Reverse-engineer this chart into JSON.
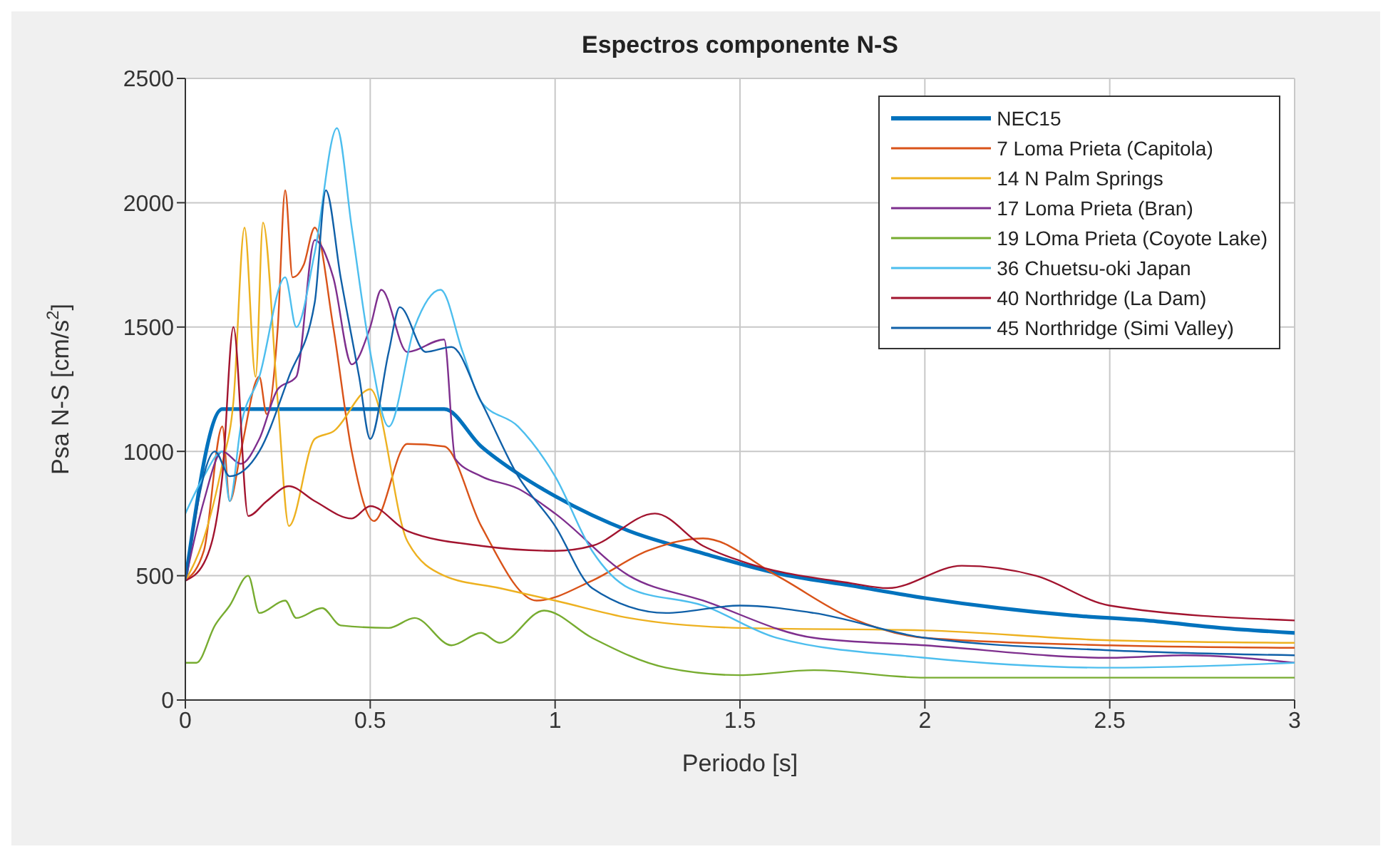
{
  "chart_data": {
    "type": "line",
    "title": "Espectros componente N-S",
    "xlabel": "Periodo [s]",
    "ylabel": "Psa N-S [cm/s$^{2}$]",
    "xlim": [
      0,
      3
    ],
    "xticks": [
      0,
      0.5,
      1,
      1.5,
      2,
      2.5,
      3
    ],
    "ylim": [
      0,
      2500
    ],
    "yticks": [
      0,
      500,
      1000,
      1500,
      2000,
      2500
    ],
    "grid": true,
    "legend": "top right",
    "marker": "none",
    "line_style": "solid",
    "series": [
      {
        "name": "NEC15",
        "color": "#0072bd",
        "x": [
          0,
          0.1,
          0.2,
          0.3,
          0.4,
          0.5,
          0.6,
          0.7,
          0.8,
          0.9,
          1,
          1.2,
          1.4,
          1.6,
          1.8,
          2,
          2.2,
          2.4,
          2.6,
          2.8,
          3
        ],
        "values": [
          480,
          1170,
          1170,
          1170,
          1170,
          1170,
          1170,
          1170,
          1020,
          910,
          820,
          680,
          590,
          510,
          460,
          410,
          370,
          340,
          320,
          290,
          270
        ]
      },
      {
        "name": "7 Loma Prieta (Capitola)",
        "color": "#d95319",
        "x": [
          0,
          0.05,
          0.1,
          0.12,
          0.15,
          0.2,
          0.22,
          0.25,
          0.27,
          0.29,
          0.32,
          0.35,
          0.4,
          0.45,
          0.51,
          0.6,
          0.7,
          0.8,
          0.95,
          1.1,
          1.25,
          1.4,
          1.6,
          1.8,
          2,
          2.5,
          3
        ],
        "values": [
          480,
          600,
          1100,
          800,
          1000,
          1300,
          1150,
          1500,
          2050,
          1700,
          1750,
          1900,
          1500,
          1000,
          720,
          1030,
          1020,
          700,
          400,
          480,
          600,
          650,
          500,
          330,
          250,
          220,
          210
        ]
      },
      {
        "name": "14 N Palm Springs",
        "color": "#edb120",
        "x": [
          0,
          0.05,
          0.1,
          0.13,
          0.16,
          0.19,
          0.21,
          0.25,
          0.28,
          0.35,
          0.4,
          0.5,
          0.6,
          0.7,
          0.85,
          1,
          1.2,
          1.5,
          2,
          2.5,
          3
        ],
        "values": [
          480,
          650,
          950,
          1200,
          1900,
          1300,
          1920,
          1200,
          700,
          1050,
          1080,
          1250,
          640,
          500,
          450,
          400,
          330,
          290,
          280,
          240,
          230
        ]
      },
      {
        "name": "17 Loma Prieta (Bran)",
        "color": "#7e2f8e",
        "x": [
          0,
          0.05,
          0.1,
          0.15,
          0.2,
          0.25,
          0.3,
          0.35,
          0.4,
          0.45,
          0.5,
          0.53,
          0.6,
          0.7,
          0.73,
          0.8,
          0.9,
          1,
          1.2,
          1.4,
          1.7,
          2,
          2.5,
          2.7,
          3
        ],
        "values": [
          480,
          800,
          1000,
          950,
          1050,
          1250,
          1300,
          1850,
          1700,
          1350,
          1500,
          1650,
          1400,
          1450,
          970,
          900,
          850,
          750,
          500,
          400,
          250,
          220,
          170,
          180,
          150
        ]
      },
      {
        "name": "19 LOma Prieta (Coyote Lake)",
        "color": "#77ac30",
        "x": [
          0,
          0.03,
          0.08,
          0.12,
          0.17,
          0.2,
          0.27,
          0.3,
          0.37,
          0.42,
          0.55,
          0.62,
          0.72,
          0.8,
          0.85,
          0.97,
          1.1,
          1.3,
          1.5,
          1.7,
          2,
          2.5,
          3
        ],
        "values": [
          150,
          150,
          300,
          380,
          500,
          350,
          400,
          330,
          370,
          300,
          290,
          330,
          220,
          270,
          230,
          360,
          250,
          130,
          100,
          120,
          90,
          90,
          90
        ]
      },
      {
        "name": "36 Chuetsu-oki Japan",
        "color": "#4dbeee",
        "x": [
          0,
          0.05,
          0.1,
          0.12,
          0.15,
          0.2,
          0.27,
          0.3,
          0.35,
          0.41,
          0.45,
          0.5,
          0.55,
          0.62,
          0.69,
          0.75,
          0.8,
          0.9,
          1,
          1.1,
          1.2,
          1.4,
          1.6,
          2,
          2.5,
          3
        ],
        "values": [
          750,
          900,
          1000,
          800,
          1100,
          1300,
          1700,
          1500,
          1800,
          2300,
          1900,
          1400,
          1100,
          1500,
          1650,
          1400,
          1200,
          1100,
          900,
          600,
          450,
          380,
          250,
          170,
          130,
          150
        ]
      },
      {
        "name": "40 Northridge (La Dam)",
        "color": "#a2142f",
        "x": [
          0,
          0.05,
          0.1,
          0.13,
          0.17,
          0.22,
          0.28,
          0.35,
          0.45,
          0.5,
          0.6,
          0.8,
          1,
          1.1,
          1.27,
          1.4,
          1.5,
          1.8,
          1.9,
          2.1,
          2.3,
          2.5,
          3
        ],
        "values": [
          480,
          550,
          900,
          1500,
          740,
          800,
          860,
          800,
          730,
          780,
          680,
          620,
          600,
          620,
          750,
          620,
          560,
          470,
          450,
          540,
          500,
          380,
          320
        ]
      },
      {
        "name": "45 Northridge (Simi Valley)",
        "color": "#1060a8",
        "x": [
          0,
          0.08,
          0.12,
          0.2,
          0.28,
          0.35,
          0.38,
          0.42,
          0.47,
          0.5,
          0.55,
          0.58,
          0.65,
          0.72,
          0.8,
          0.9,
          1,
          1.1,
          1.3,
          1.5,
          1.7,
          2,
          2.5,
          3
        ],
        "values": [
          480,
          1000,
          900,
          1000,
          1300,
          1600,
          2050,
          1700,
          1300,
          1050,
          1400,
          1580,
          1400,
          1420,
          1200,
          900,
          700,
          450,
          350,
          380,
          350,
          250,
          200,
          180
        ]
      }
    ]
  }
}
